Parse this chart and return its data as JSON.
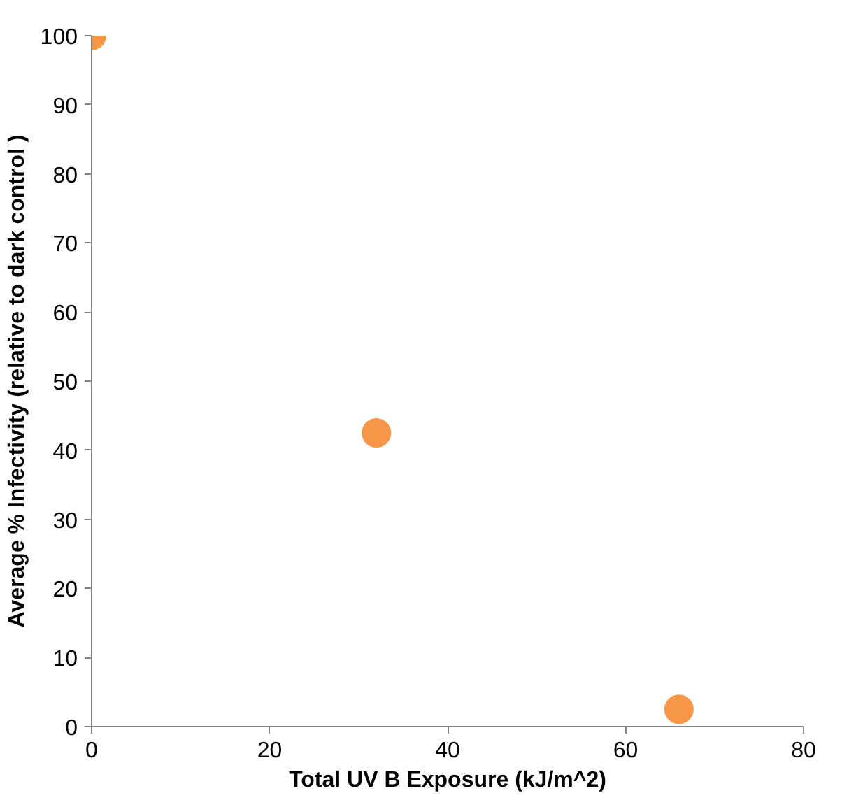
{
  "chart_data": {
    "type": "scatter",
    "xlabel": "Total UV B Exposure (kJ/m^2)",
    "ylabel": "Average % Infectivity (relative to dark control )",
    "x": [
      0,
      32,
      66
    ],
    "values": [
      100,
      42.5,
      2.5
    ],
    "color": "#f79646",
    "marker": "circle",
    "xlim": [
      0,
      80
    ],
    "xticks": [
      0,
      20,
      40,
      60,
      80
    ],
    "ylim": [
      0,
      100
    ],
    "yticks": [
      0,
      10,
      20,
      30,
      40,
      50,
      60,
      70,
      80,
      90,
      100
    ]
  }
}
